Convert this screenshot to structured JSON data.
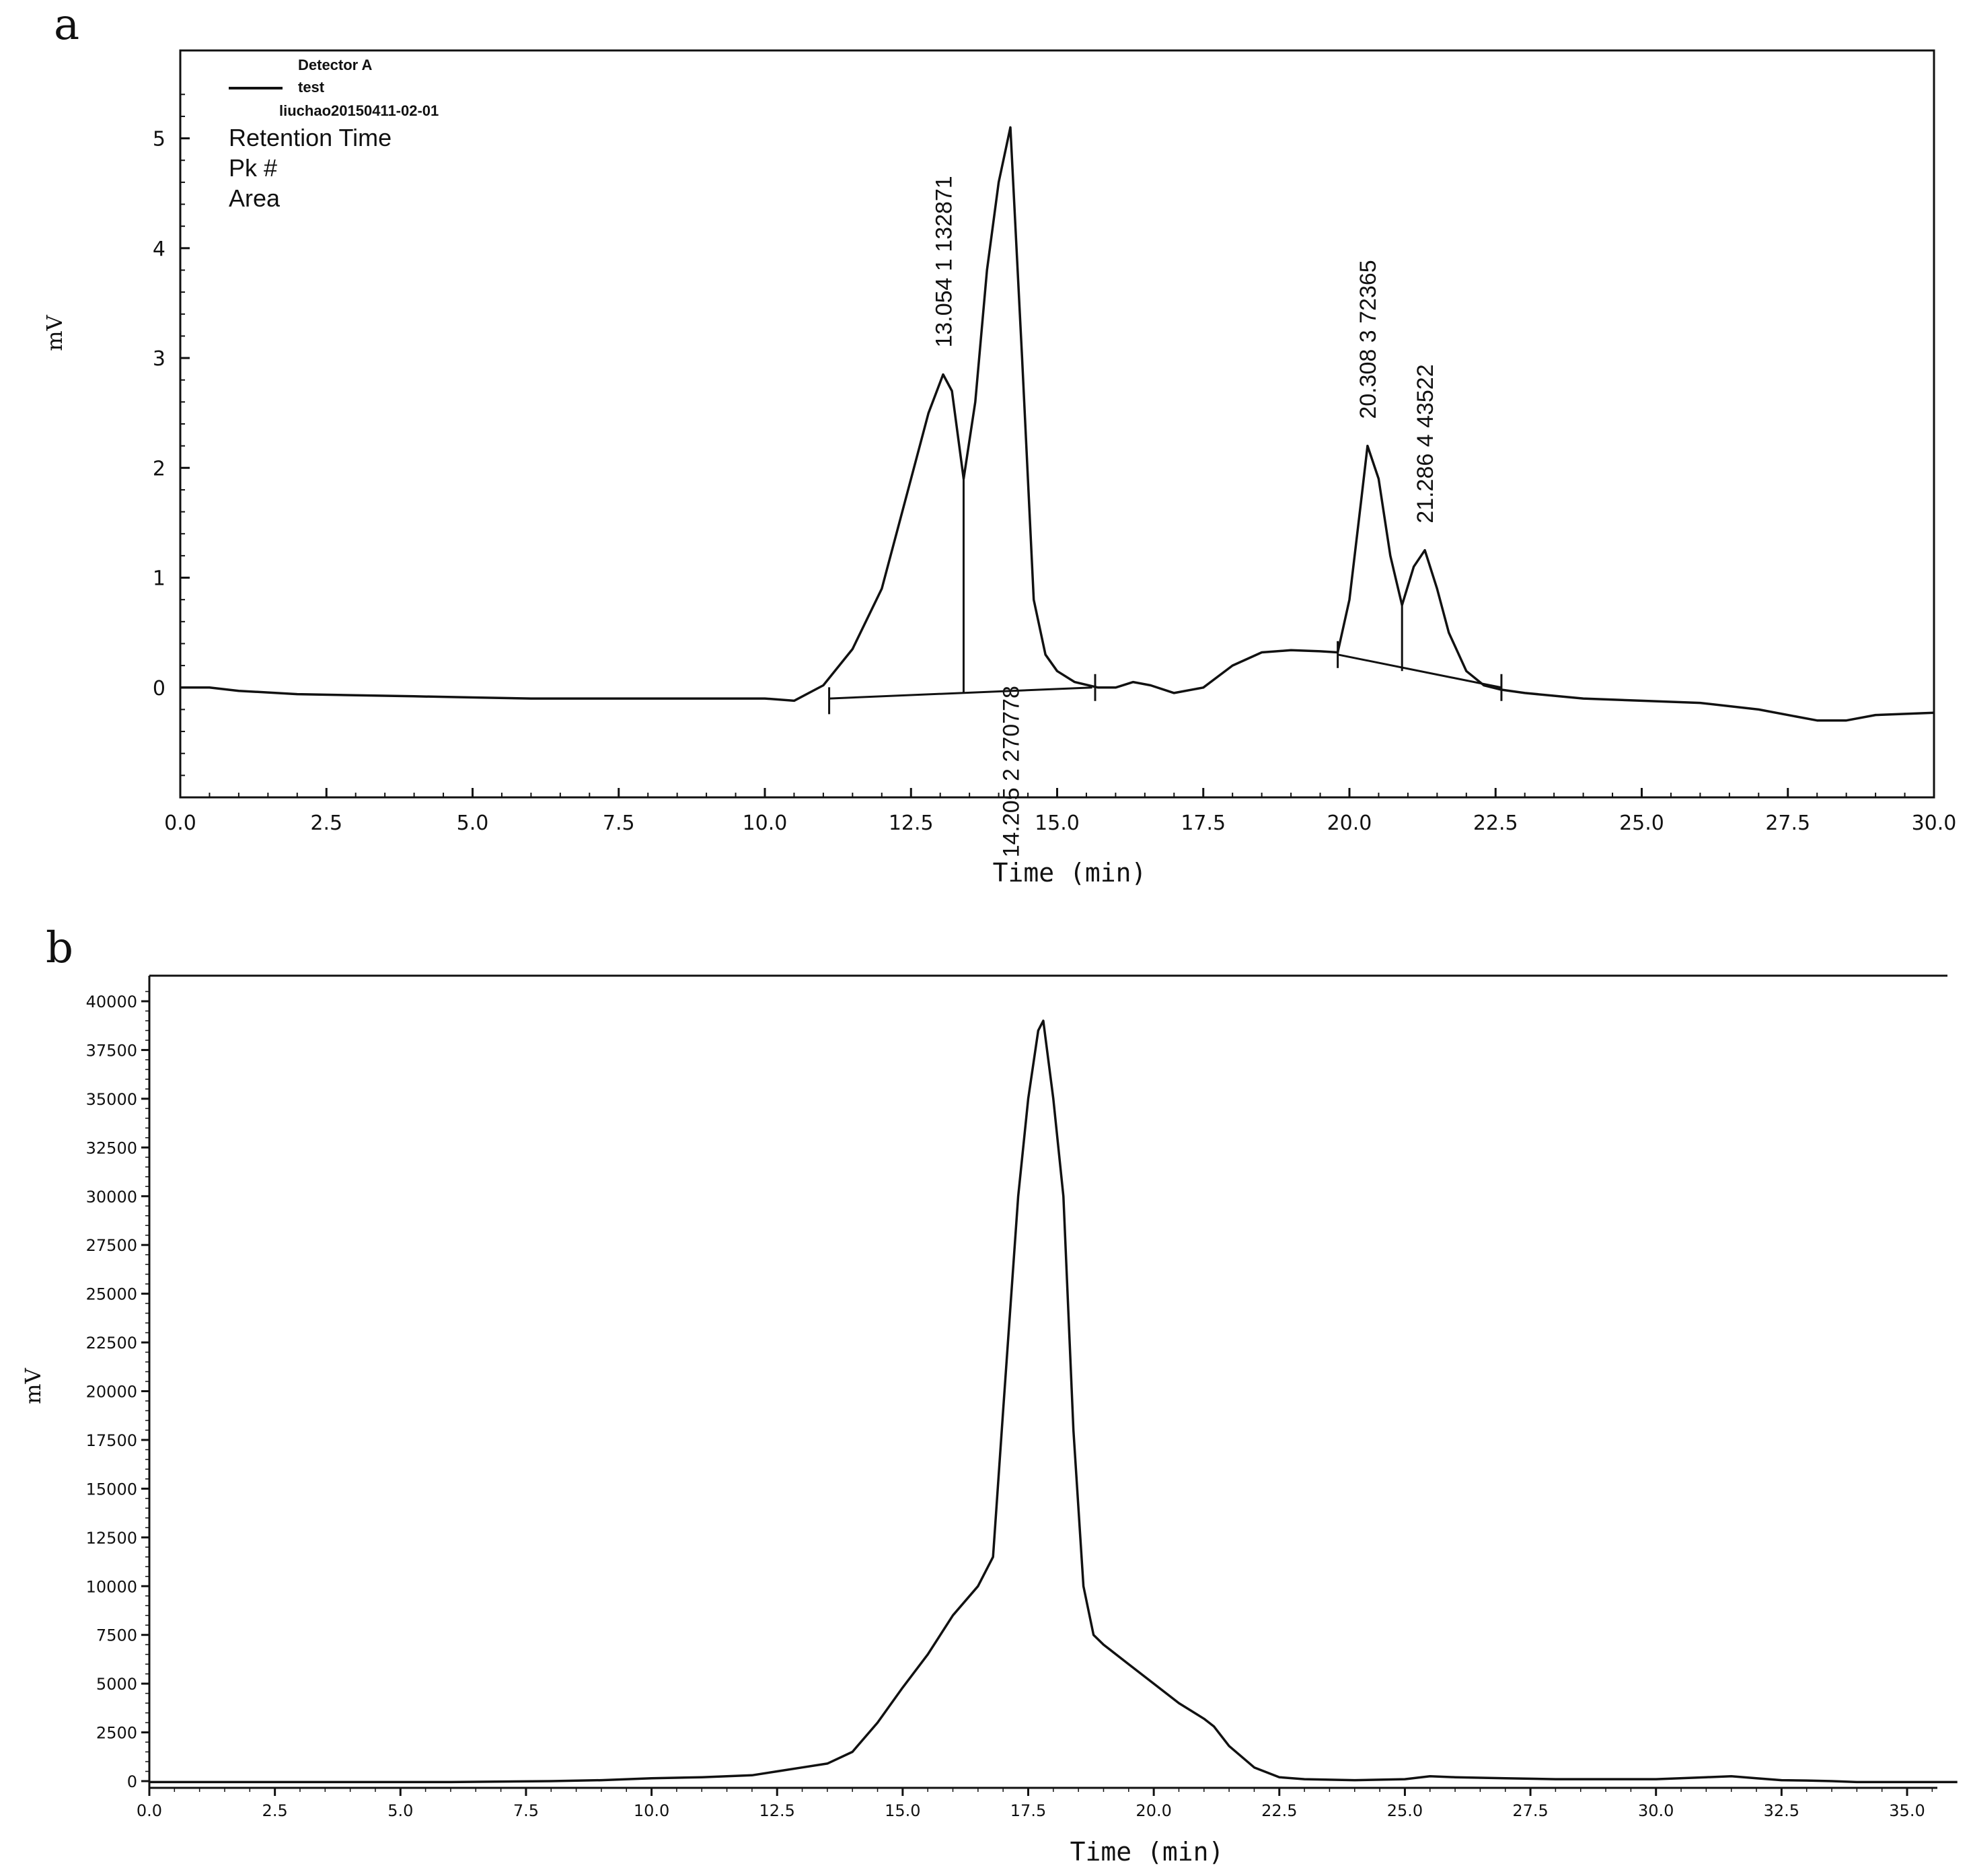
{
  "chart_data": [
    {
      "panel": "a",
      "type": "line",
      "xlabel": "Time (min)",
      "ylabel": "mV",
      "xlim": [
        0,
        30
      ],
      "ylim": [
        -1,
        5.8
      ],
      "xticks": [
        "0.0",
        "2.5",
        "5.0",
        "7.5",
        "10.0",
        "12.5",
        "15.0",
        "17.5",
        "20.0",
        "22.5",
        "25.0",
        "27.5",
        "30.0"
      ],
      "yticks": [
        "0",
        "1",
        "2",
        "3",
        "4",
        "5"
      ],
      "legend": {
        "detector": "Detector A",
        "sample": "test",
        "file": "liuchao20150411-02-01",
        "fields": [
          "Retention Time",
          "Pk #",
          "Area"
        ]
      },
      "series": [
        {
          "name": "test",
          "x": [
            0.0,
            0.5,
            1.0,
            2.0,
            3.0,
            4.0,
            5.0,
            6.0,
            7.0,
            8.0,
            9.0,
            10.0,
            10.5,
            11.0,
            11.5,
            12.0,
            12.5,
            12.8,
            13.05,
            13.2,
            13.4,
            13.6,
            13.8,
            14.0,
            14.2,
            14.4,
            14.6,
            14.8,
            15.0,
            15.3,
            15.7,
            16.0,
            16.3,
            16.6,
            17.0,
            17.5,
            18.0,
            18.5,
            19.0,
            19.5,
            19.8,
            20.0,
            20.2,
            20.31,
            20.5,
            20.7,
            20.9,
            21.1,
            21.29,
            21.5,
            21.7,
            22.0,
            22.3,
            22.6,
            23.0,
            24.0,
            25.0,
            26.0,
            27.0,
            28.0,
            28.5,
            29.0,
            30.0
          ],
          "y": [
            0.0,
            0.0,
            -0.03,
            -0.06,
            -0.07,
            -0.08,
            -0.09,
            -0.1,
            -0.1,
            -0.1,
            -0.1,
            -0.1,
            -0.12,
            0.02,
            0.35,
            0.9,
            1.9,
            2.5,
            2.85,
            2.7,
            1.9,
            2.6,
            3.8,
            4.6,
            5.1,
            3.0,
            0.8,
            0.3,
            0.15,
            0.05,
            0.0,
            0.0,
            0.05,
            0.02,
            -0.05,
            0.0,
            0.2,
            0.32,
            0.34,
            0.33,
            0.32,
            0.8,
            1.7,
            2.2,
            1.9,
            1.2,
            0.75,
            1.1,
            1.25,
            0.9,
            0.5,
            0.15,
            0.02,
            -0.02,
            -0.05,
            -0.1,
            -0.12,
            -0.14,
            -0.2,
            -0.3,
            -0.3,
            -0.25,
            -0.23
          ]
        }
      ],
      "baseline_segments": [
        {
          "x": [
            11.1,
            15.6
          ],
          "y": [
            -0.1,
            0.0
          ]
        },
        {
          "x": [
            19.8,
            22.6
          ],
          "y": [
            0.3,
            0.0
          ]
        }
      ],
      "integration_markers": [
        {
          "x": 11.1,
          "y": -0.12
        },
        {
          "x": 15.65,
          "y": 0.0
        },
        {
          "x": 19.8,
          "y": 0.3
        },
        {
          "x": 22.6,
          "y": 0.0
        }
      ],
      "peak_dividers": [
        {
          "x": 13.4,
          "y_top": 1.9,
          "y_base": -0.05
        },
        {
          "x": 20.9,
          "y_top": 0.75,
          "y_base": 0.15
        }
      ],
      "peaks": [
        {
          "label": "13.054  1  132871",
          "x": 13.054,
          "y": 2.85,
          "placement": "above"
        },
        {
          "label": "14.205  2  270778",
          "x": 14.205,
          "y": 0.0,
          "placement": "below"
        },
        {
          "label": "20.308  3  72365",
          "x": 20.308,
          "y": 2.2,
          "placement": "above"
        },
        {
          "label": "21.286  4  43522",
          "x": 21.286,
          "y": 1.25,
          "placement": "above"
        }
      ]
    },
    {
      "panel": "b",
      "type": "line",
      "xlabel": "Time (min)",
      "ylabel": "mV",
      "xlim": [
        0,
        36
      ],
      "ylim": [
        -100,
        41000
      ],
      "xticks": [
        "0.0",
        "2.5",
        "5.0",
        "7.5",
        "10.0",
        "12.5",
        "15.0",
        "17.5",
        "20.0",
        "22.5",
        "25.0",
        "27.5",
        "30.0",
        "32.5",
        "35.0"
      ],
      "yticks": [
        "0",
        "2500",
        "5000",
        "7500",
        "10000",
        "12500",
        "15000",
        "17500",
        "20000",
        "22500",
        "25000",
        "27500",
        "30000",
        "32500",
        "35000",
        "37500",
        "40000"
      ],
      "series": [
        {
          "name": "",
          "x": [
            0.0,
            2.0,
            4.0,
            6.0,
            8.0,
            9.0,
            10.0,
            11.0,
            12.0,
            12.5,
            13.0,
            13.5,
            14.0,
            14.5,
            15.0,
            15.5,
            16.0,
            16.5,
            16.8,
            17.0,
            17.3,
            17.5,
            17.7,
            17.8,
            18.0,
            18.2,
            18.4,
            18.6,
            18.8,
            19.0,
            19.5,
            20.0,
            20.5,
            21.0,
            21.2,
            21.5,
            22.0,
            22.5,
            23.0,
            24.0,
            25.0,
            25.5,
            26.0,
            27.0,
            28.0,
            29.0,
            30.0,
            31.0,
            31.5,
            32.0,
            32.5,
            33.0,
            33.5,
            34.0,
            35.0,
            36.0
          ],
          "y": [
            -50,
            -50,
            -50,
            -50,
            0,
            50,
            150,
            200,
            300,
            500,
            700,
            900,
            1500,
            3000,
            4800,
            6500,
            8500,
            10000,
            11500,
            19000,
            30000,
            35000,
            38500,
            39000,
            35000,
            30000,
            18000,
            10000,
            7500,
            7000,
            6000,
            5000,
            4000,
            3200,
            2800,
            1800,
            700,
            200,
            100,
            50,
            100,
            250,
            200,
            150,
            100,
            100,
            100,
            200,
            250,
            150,
            50,
            30,
            0,
            -50,
            -50,
            -50
          ]
        }
      ]
    }
  ]
}
